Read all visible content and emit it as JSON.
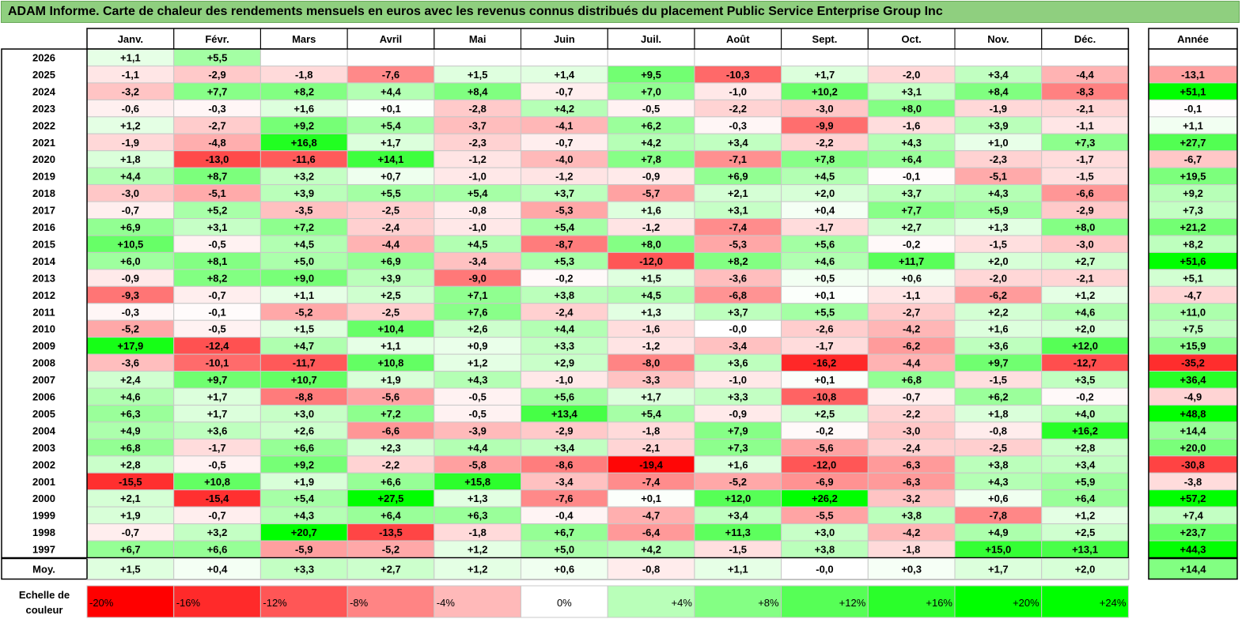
{
  "title": "ADAM Informe. Carte de chaleur des rendements mensuels en euros avec les revenus connus distribués du placement Public Service Enterprise Group Inc",
  "chart_data": {
    "type": "heatmap",
    "months": [
      "Janv.",
      "Févr.",
      "Mars",
      "Avril",
      "Mai",
      "Juin",
      "Juil.",
      "Août",
      "Sept.",
      "Oct.",
      "Nov.",
      "Déc."
    ],
    "year_header": "Année",
    "rows": [
      {
        "year": "2026",
        "values": [
          "+1,1",
          "+5,5",
          "",
          "",
          "",
          "",
          "",
          "",
          "",
          "",
          "",
          ""
        ],
        "annual": ""
      },
      {
        "year": "2025",
        "values": [
          "-1,1",
          "-2,9",
          "-1,8",
          "-7,6",
          "+1,5",
          "+1,4",
          "+9,5",
          "-10,3",
          "+1,7",
          "-2,0",
          "+3,4",
          "-4,4"
        ],
        "annual": "-13,1"
      },
      {
        "year": "2024",
        "values": [
          "-3,2",
          "+7,7",
          "+8,2",
          "+4,4",
          "+8,4",
          "-0,7",
          "+7,0",
          "-1,0",
          "+10,2",
          "+3,1",
          "+8,4",
          "-8,3"
        ],
        "annual": "+51,1"
      },
      {
        "year": "2023",
        "values": [
          "-0,6",
          "-0,3",
          "+1,6",
          "+0,1",
          "-2,8",
          "+4,2",
          "-0,5",
          "-2,2",
          "-3,0",
          "+8,0",
          "-1,9",
          "-2,1"
        ],
        "annual": "-0,1"
      },
      {
        "year": "2022",
        "values": [
          "+1,2",
          "-2,7",
          "+9,2",
          "+5,4",
          "-3,7",
          "-4,1",
          "+6,2",
          "-0,3",
          "-9,9",
          "-1,6",
          "+3,9",
          "-1,1"
        ],
        "annual": "+1,1"
      },
      {
        "year": "2021",
        "values": [
          "-1,9",
          "-4,8",
          "+16,8",
          "+1,7",
          "-2,3",
          "-0,7",
          "+4,2",
          "+3,4",
          "-2,2",
          "+4,3",
          "+1,0",
          "+7,3"
        ],
        "annual": "+27,7"
      },
      {
        "year": "2020",
        "values": [
          "+1,8",
          "-13,0",
          "-11,6",
          "+14,1",
          "-1,2",
          "-4,0",
          "+7,8",
          "-7,1",
          "+7,8",
          "+6,4",
          "-2,3",
          "-1,7"
        ],
        "annual": "-6,7"
      },
      {
        "year": "2019",
        "values": [
          "+4,4",
          "+8,7",
          "+3,2",
          "+0,7",
          "-1,0",
          "-1,2",
          "-0,9",
          "+6,9",
          "+4,5",
          "-0,1",
          "-5,1",
          "-1,5"
        ],
        "annual": "+19,5"
      },
      {
        "year": "2018",
        "values": [
          "-3,0",
          "-5,1",
          "+3,9",
          "+5,5",
          "+5,4",
          "+3,7",
          "-5,7",
          "+2,1",
          "+2,0",
          "+3,7",
          "+4,3",
          "-6,6"
        ],
        "annual": "+9,2"
      },
      {
        "year": "2017",
        "values": [
          "-0,7",
          "+5,2",
          "-3,5",
          "-2,5",
          "-0,8",
          "-5,3",
          "+1,6",
          "+3,1",
          "+0,4",
          "+7,7",
          "+5,9",
          "-2,9"
        ],
        "annual": "+7,3"
      },
      {
        "year": "2016",
        "values": [
          "+6,9",
          "+3,1",
          "+7,2",
          "-2,4",
          "-1,0",
          "+5,4",
          "-1,2",
          "-7,4",
          "-1,7",
          "+2,7",
          "+1,3",
          "+8,0"
        ],
        "annual": "+21,2"
      },
      {
        "year": "2015",
        "values": [
          "+10,5",
          "-0,5",
          "+4,5",
          "-4,4",
          "+4,5",
          "-8,7",
          "+8,0",
          "-5,3",
          "+5,6",
          "-0,2",
          "-1,5",
          "-3,0"
        ],
        "annual": "+8,2"
      },
      {
        "year": "2014",
        "values": [
          "+6,0",
          "+8,1",
          "+5,0",
          "+6,9",
          "-3,4",
          "+5,3",
          "-12,0",
          "+8,2",
          "+4,6",
          "+11,7",
          "+2,0",
          "+2,7"
        ],
        "annual": "+51,6"
      },
      {
        "year": "2013",
        "values": [
          "-0,9",
          "+8,2",
          "+9,0",
          "+3,9",
          "-9,0",
          "-0,2",
          "+1,5",
          "-3,6",
          "+0,5",
          "+0,6",
          "-2,0",
          "-2,1"
        ],
        "annual": "+5,1"
      },
      {
        "year": "2012",
        "values": [
          "-9,3",
          "-0,7",
          "+1,1",
          "+2,5",
          "+7,1",
          "+3,8",
          "+4,5",
          "-6,8",
          "+0,1",
          "-1,1",
          "-6,2",
          "+1,2"
        ],
        "annual": "-4,7"
      },
      {
        "year": "2011",
        "values": [
          "-0,3",
          "-0,1",
          "-5,2",
          "-2,5",
          "+7,6",
          "-2,4",
          "+1,3",
          "+3,7",
          "+5,5",
          "-2,7",
          "+2,2",
          "+4,6"
        ],
        "annual": "+11,0"
      },
      {
        "year": "2010",
        "values": [
          "-5,2",
          "-0,5",
          "+1,5",
          "+10,4",
          "+2,6",
          "+4,4",
          "-1,6",
          "-0,0",
          "-2,6",
          "-4,2",
          "+1,6",
          "+2,0"
        ],
        "annual": "+7,5"
      },
      {
        "year": "2009",
        "values": [
          "+17,9",
          "-12,4",
          "+4,7",
          "+1,1",
          "+0,9",
          "+3,3",
          "-1,2",
          "-3,4",
          "-1,7",
          "-6,2",
          "+3,6",
          "+12,0"
        ],
        "annual": "+15,9"
      },
      {
        "year": "2008",
        "values": [
          "-3,6",
          "-10,1",
          "-11,7",
          "+10,8",
          "+1,2",
          "+2,9",
          "-8,0",
          "+3,6",
          "-16,2",
          "-4,4",
          "+9,7",
          "-12,7"
        ],
        "annual": "-35,2"
      },
      {
        "year": "2007",
        "values": [
          "+2,4",
          "+9,7",
          "+10,7",
          "+1,9",
          "+4,3",
          "-1,0",
          "-3,3",
          "-1,0",
          "+0,1",
          "+6,8",
          "-1,5",
          "+3,5"
        ],
        "annual": "+36,4"
      },
      {
        "year": "2006",
        "values": [
          "+4,6",
          "+1,7",
          "-8,8",
          "-5,6",
          "-0,5",
          "+5,6",
          "+1,7",
          "+3,3",
          "-10,8",
          "-0,7",
          "+6,2",
          "-0,2"
        ],
        "annual": "-4,9"
      },
      {
        "year": "2005",
        "values": [
          "+6,3",
          "+1,7",
          "+3,0",
          "+7,2",
          "-0,5",
          "+13,4",
          "+5,4",
          "-0,9",
          "+2,5",
          "-2,2",
          "+1,8",
          "+4,0"
        ],
        "annual": "+48,8"
      },
      {
        "year": "2004",
        "values": [
          "+4,9",
          "+3,6",
          "+2,6",
          "-6,6",
          "-3,9",
          "-2,9",
          "-1,8",
          "+7,9",
          "-0,2",
          "-3,0",
          "-0,8",
          "+16,2"
        ],
        "annual": "+14,4"
      },
      {
        "year": "2003",
        "values": [
          "+6,8",
          "-1,7",
          "+6,6",
          "+2,3",
          "+4,4",
          "+3,4",
          "-2,1",
          "+7,3",
          "-5,6",
          "-2,4",
          "-2,5",
          "+2,8"
        ],
        "annual": "+20,0"
      },
      {
        "year": "2002",
        "values": [
          "+2,8",
          "-0,5",
          "+9,2",
          "-2,2",
          "-5,8",
          "-8,6",
          "-19,4",
          "+1,6",
          "-12,0",
          "-6,3",
          "+3,8",
          "+3,4"
        ],
        "annual": "-30,8"
      },
      {
        "year": "2001",
        "values": [
          "-15,5",
          "+10,8",
          "+1,9",
          "+6,6",
          "+15,8",
          "-3,4",
          "-7,4",
          "-5,2",
          "-6,9",
          "-6,3",
          "+4,3",
          "+5,9"
        ],
        "annual": "-3,8"
      },
      {
        "year": "2000",
        "values": [
          "+2,1",
          "-15,4",
          "+5,4",
          "+27,5",
          "+1,3",
          "-7,6",
          "+0,1",
          "+12,0",
          "+26,2",
          "-3,2",
          "+0,6",
          "+6,4"
        ],
        "annual": "+57,2"
      },
      {
        "year": "1999",
        "values": [
          "+1,9",
          "-0,7",
          "+4,3",
          "+6,4",
          "+6,3",
          "-0,4",
          "-4,7",
          "+3,4",
          "-5,5",
          "+3,8",
          "-7,8",
          "+1,2"
        ],
        "annual": "+7,4"
      },
      {
        "year": "1998",
        "values": [
          "-0,7",
          "+3,2",
          "+20,7",
          "-13,5",
          "-1,8",
          "+6,7",
          "-6,4",
          "+11,3",
          "+3,0",
          "-4,2",
          "+4,9",
          "+2,5"
        ],
        "annual": "+23,7"
      },
      {
        "year": "1997",
        "values": [
          "+6,7",
          "+6,6",
          "-5,9",
          "-5,2",
          "+1,2",
          "+5,0",
          "+4,2",
          "-1,5",
          "+3,8",
          "-1,8",
          "+15,0",
          "+13,1"
        ],
        "annual": "+44,3"
      }
    ],
    "average": {
      "label": "Moy.",
      "values": [
        "+1,5",
        "+0,4",
        "+3,3",
        "+2,7",
        "+1,2",
        "+0,6",
        "-0,8",
        "+1,1",
        "-0,0",
        "+0,3",
        "+1,7",
        "+2,0"
      ],
      "annual": "+14,4"
    },
    "color_scale": {
      "label_line1": "Echelle de",
      "label_line2": "couleur",
      "stops": [
        "-20%",
        "-16%",
        "-12%",
        "-8%",
        "-4%",
        "0%",
        "+4%",
        "+8%",
        "+12%",
        "+16%",
        "+20%",
        "+24%"
      ],
      "negative_color": "#ff0000",
      "neutral_color": "#ffffff",
      "positive_color": "#00ff00"
    }
  }
}
